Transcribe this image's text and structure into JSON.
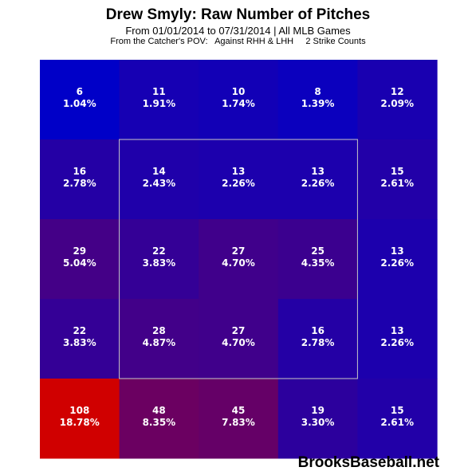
{
  "chart_data": {
    "type": "heatmap",
    "title": "Drew Smyly: Raw Number of Pitches",
    "subtitle": "From 01/01/2014 to 07/31/2014 | All MLB Games",
    "subtitle2": "From the Catcher's POV:   Against RHH & LHH     2 Strike Counts",
    "rows": 5,
    "cols": 5,
    "counts": [
      [
        6,
        11,
        10,
        8,
        12
      ],
      [
        16,
        14,
        13,
        13,
        15
      ],
      [
        29,
        22,
        27,
        25,
        13
      ],
      [
        22,
        28,
        27,
        16,
        13
      ],
      [
        108,
        48,
        45,
        19,
        15
      ]
    ],
    "percents": [
      [
        "1.04%",
        "1.91%",
        "1.74%",
        "1.39%",
        "2.09%"
      ],
      [
        "2.78%",
        "2.43%",
        "2.26%",
        "2.26%",
        "2.61%"
      ],
      [
        "5.04%",
        "3.83%",
        "4.70%",
        "4.35%",
        "2.26%"
      ],
      [
        "3.83%",
        "4.87%",
        "4.70%",
        "2.78%",
        "2.26%"
      ],
      [
        "18.78%",
        "8.35%",
        "7.83%",
        "3.30%",
        "2.61%"
      ]
    ],
    "strike_zone": {
      "rows": [
        1,
        3
      ],
      "cols": [
        1,
        3
      ]
    },
    "colors": {
      "low": "#0000c8",
      "high": "#d00000",
      "zone_border": "#c8c8c8"
    }
  },
  "watermark": "BrooksBaseball.net"
}
